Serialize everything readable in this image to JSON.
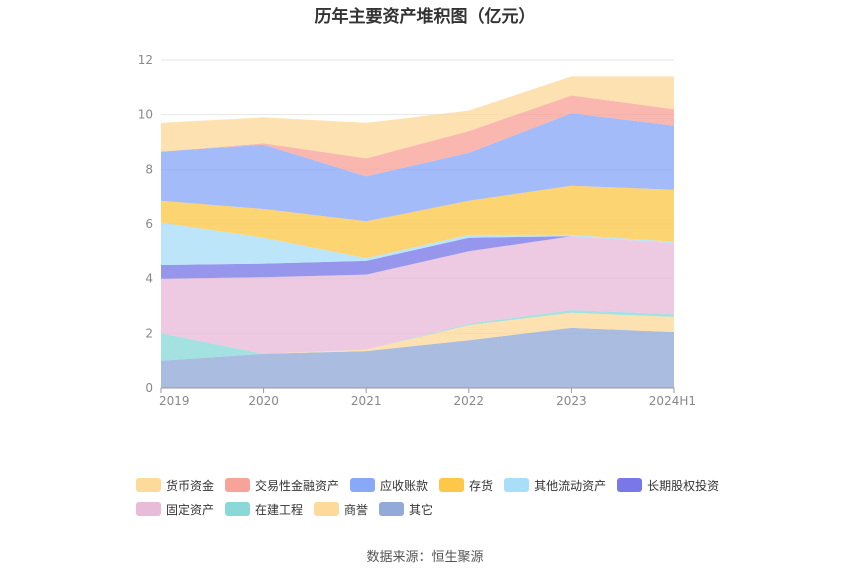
{
  "chart_data": {
    "type": "area",
    "title": "历年主要资产堆积图（亿元）",
    "categories": [
      "2019",
      "2020",
      "2021",
      "2022",
      "2023",
      "2024H1"
    ],
    "ylim": [
      0,
      12
    ],
    "yticks": [
      0,
      2,
      4,
      6,
      8,
      10,
      12
    ],
    "grid": true,
    "legend_position": "bottom",
    "stack_order": [
      "其它",
      "商誉",
      "在建工程",
      "固定资产",
      "长期股权投资",
      "其他流动资产",
      "存货",
      "应收账款",
      "交易性金融资产",
      "货币资金"
    ],
    "series": [
      {
        "name": "货币资金",
        "color": "#fdd99a",
        "values": [
          1.05,
          0.95,
          1.3,
          0.75,
          0.7,
          1.2
        ]
      },
      {
        "name": "交易性金融资产",
        "color": "#f7a39a",
        "values": [
          0.0,
          0.05,
          0.65,
          0.8,
          0.65,
          0.6
        ]
      },
      {
        "name": "应收账款",
        "color": "#8aa8f8",
        "values": [
          1.8,
          2.35,
          1.65,
          1.75,
          2.65,
          2.35
        ]
      },
      {
        "name": "存货",
        "color": "#fdc84a",
        "values": [
          0.8,
          1.05,
          1.35,
          1.25,
          1.8,
          1.9
        ]
      },
      {
        "name": "其他流动资产",
        "color": "#a9def8",
        "values": [
          1.55,
          0.95,
          0.1,
          0.1,
          0.05,
          0.05
        ]
      },
      {
        "name": "长期股权投资",
        "color": "#7a78e8",
        "values": [
          0.5,
          0.5,
          0.5,
          0.5,
          0.0,
          0.0
        ]
      },
      {
        "name": "固定资产",
        "color": "#e8bbd8",
        "values": [
          2.0,
          2.8,
          2.75,
          2.65,
          2.7,
          2.6
        ]
      },
      {
        "name": "在建工程",
        "color": "#8ad8d8",
        "values": [
          1.0,
          0.0,
          0.0,
          0.05,
          0.1,
          0.1
        ]
      },
      {
        "name": "商誉",
        "color": "#fdd99a",
        "values": [
          0.0,
          0.0,
          0.05,
          0.55,
          0.55,
          0.55
        ]
      },
      {
        "name": "其它",
        "color": "#92aad8",
        "values": [
          1.0,
          1.25,
          1.35,
          1.75,
          2.2,
          2.05
        ]
      }
    ],
    "legend_rows": [
      [
        "货币资金",
        "交易性金融资产",
        "应收账款",
        "存货",
        "其他流动资产",
        "长期股权投资"
      ],
      [
        "固定资产",
        "在建工程",
        "商誉",
        "其它"
      ]
    ]
  },
  "source_text": "数据来源：恒生聚源"
}
